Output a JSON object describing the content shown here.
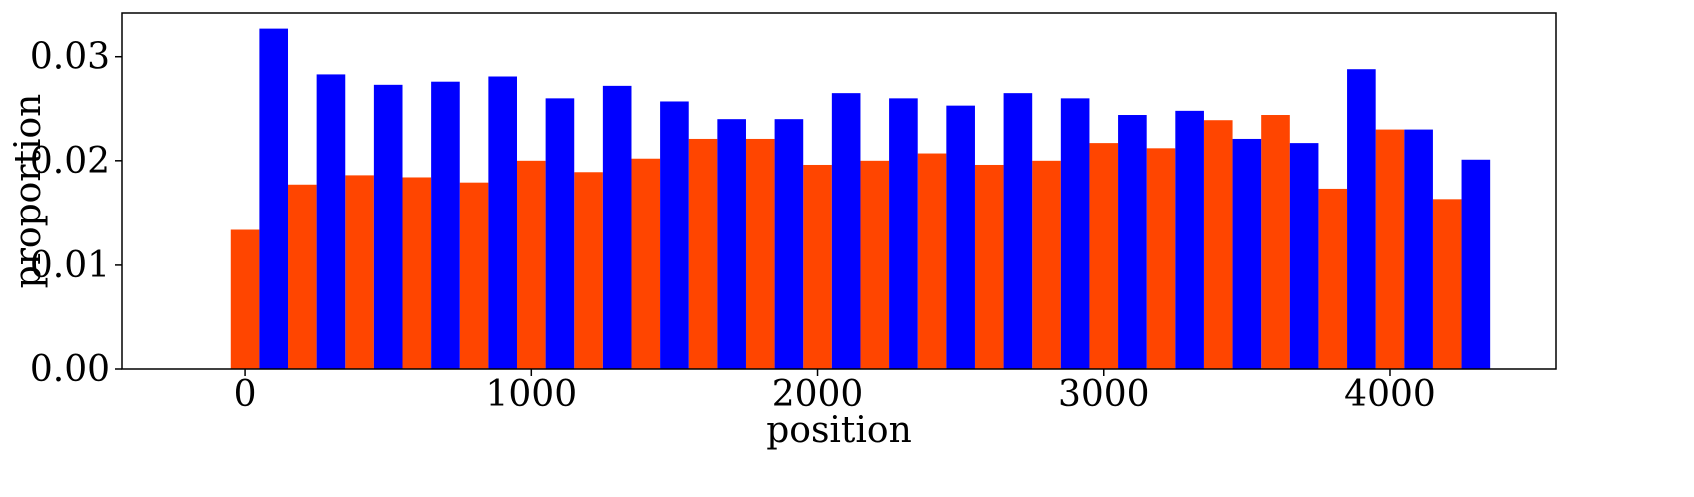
{
  "chart_data": {
    "type": "bar",
    "title": "",
    "xlabel": "position",
    "ylabel": "proportion",
    "xlim": [
      -430,
      4580
    ],
    "ylim": [
      0.0,
      0.0342
    ],
    "xticks": [
      0,
      1000,
      2000,
      3000,
      4000
    ],
    "xtick_labels": [
      "0",
      "1000",
      "2000",
      "3000",
      "4000"
    ],
    "yticks": [
      0.0,
      0.01,
      0.02,
      0.03
    ],
    "ytick_labels": [
      "0.00",
      "0.01",
      "0.02",
      "0.03"
    ],
    "bin_width": 200,
    "bins_start": [
      -50,
      150,
      350,
      550,
      750,
      950,
      1150,
      1350,
      1550,
      1750,
      1950,
      2150,
      2350,
      2550,
      2750,
      2950,
      3150,
      3350,
      3550,
      3750,
      3950,
      4150
    ],
    "grid": false,
    "legend": "none",
    "series": [
      {
        "color": "#ff4500",
        "values": [
          0.0134,
          0.0177,
          0.0186,
          0.0184,
          0.0179,
          0.02,
          0.0189,
          0.0202,
          0.0221,
          0.0221,
          0.0196,
          0.02,
          0.0207,
          0.0196,
          0.02,
          0.0217,
          0.0212,
          0.0239,
          0.0244,
          0.0173,
          0.023,
          0.0163
        ]
      },
      {
        "color": "#0000ff",
        "values": [
          0.0327,
          0.0283,
          0.0273,
          0.0276,
          0.0281,
          0.026,
          0.0272,
          0.0257,
          0.024,
          0.024,
          0.0265,
          0.026,
          0.0253,
          0.0265,
          0.026,
          0.0244,
          0.0248,
          0.0221,
          0.0217,
          0.0288,
          0.023,
          0.0201
        ]
      }
    ]
  }
}
